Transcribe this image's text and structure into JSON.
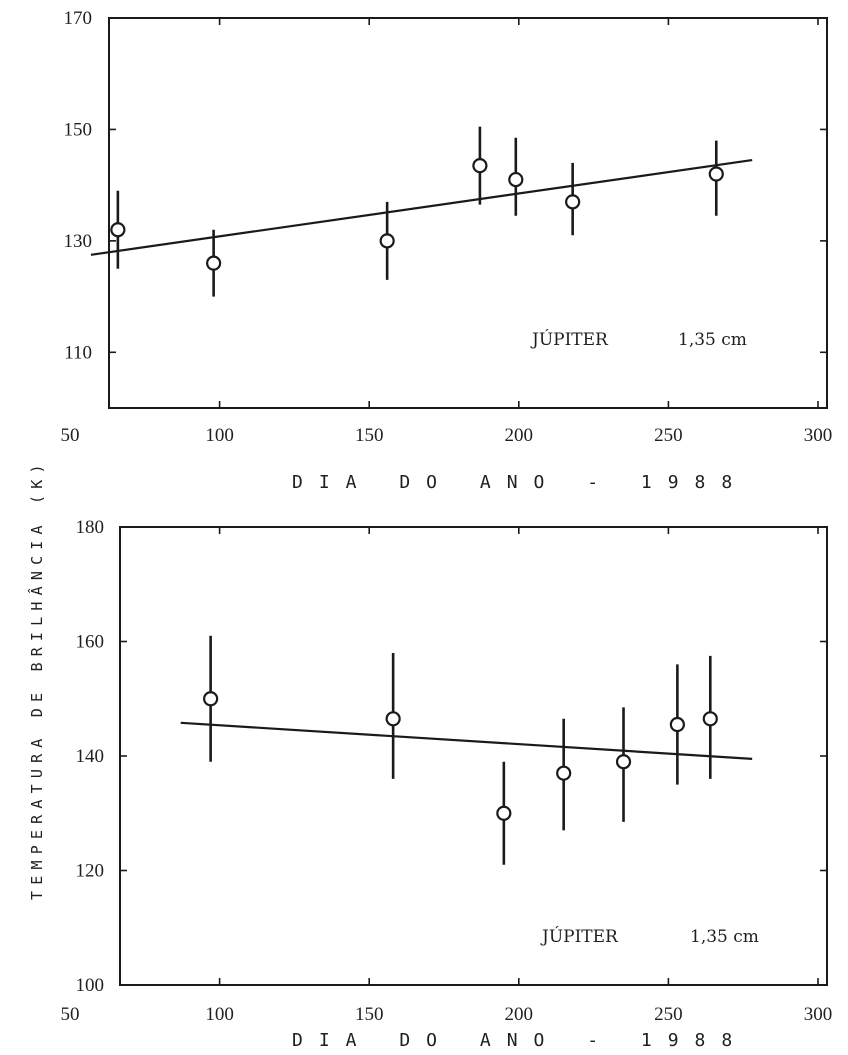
{
  "ylabel": "TEMPERATURA DE BRILHÂNCIA (K)",
  "chart_data": [
    {
      "type": "scatter",
      "xlabel": "DIA DO ANO - 1988",
      "annotation": {
        "object": "JÚPITER",
        "wavelength": "1,35 cm"
      },
      "xlim": [
        50,
        300
      ],
      "ylim": [
        100,
        170
      ],
      "xticks": [
        "50",
        "100",
        "150",
        "200",
        "250",
        "300"
      ],
      "yticks": [
        "110",
        "130",
        "150",
        "170"
      ],
      "points": [
        {
          "x": 66,
          "y": 132,
          "err_low": 125,
          "err_high": 139
        },
        {
          "x": 98,
          "y": 126,
          "err_low": 120,
          "err_high": 132
        },
        {
          "x": 156,
          "y": 130,
          "err_low": 123,
          "err_high": 137
        },
        {
          "x": 187,
          "y": 143.5,
          "err_low": 136.5,
          "err_high": 150.5
        },
        {
          "x": 199,
          "y": 141,
          "err_low": 134.5,
          "err_high": 148.5
        },
        {
          "x": 218,
          "y": 137,
          "err_low": 131,
          "err_high": 144
        },
        {
          "x": 266,
          "y": 142,
          "err_low": 134.5,
          "err_high": 148
        }
      ],
      "fit_line": {
        "x": [
          57,
          278
        ],
        "y": [
          127.5,
          144.5
        ]
      }
    },
    {
      "type": "scatter",
      "xlabel": "DIA DO ANO - 1988",
      "annotation": {
        "object": "JÚPITER",
        "wavelength": "1,35 cm"
      },
      "xlim": [
        50,
        300
      ],
      "ylim": [
        100,
        180
      ],
      "xticks": [
        "50",
        "100",
        "150",
        "200",
        "250",
        "300"
      ],
      "yticks": [
        "100",
        "120",
        "140",
        "160",
        "180"
      ],
      "points": [
        {
          "x": 97,
          "y": 150,
          "err_low": 139,
          "err_high": 161
        },
        {
          "x": 158,
          "y": 146.5,
          "err_low": 136,
          "err_high": 158
        },
        {
          "x": 195,
          "y": 130,
          "err_low": 121,
          "err_high": 139
        },
        {
          "x": 215,
          "y": 137,
          "err_low": 127,
          "err_high": 146.5
        },
        {
          "x": 235,
          "y": 139,
          "err_low": 128.5,
          "err_high": 148.5
        },
        {
          "x": 253,
          "y": 145.5,
          "err_low": 135,
          "err_high": 156
        },
        {
          "x": 264,
          "y": 146.5,
          "err_low": 136,
          "err_high": 157.5
        }
      ],
      "fit_line": {
        "x": [
          87,
          278
        ],
        "y": [
          145.8,
          139.5
        ]
      }
    }
  ]
}
